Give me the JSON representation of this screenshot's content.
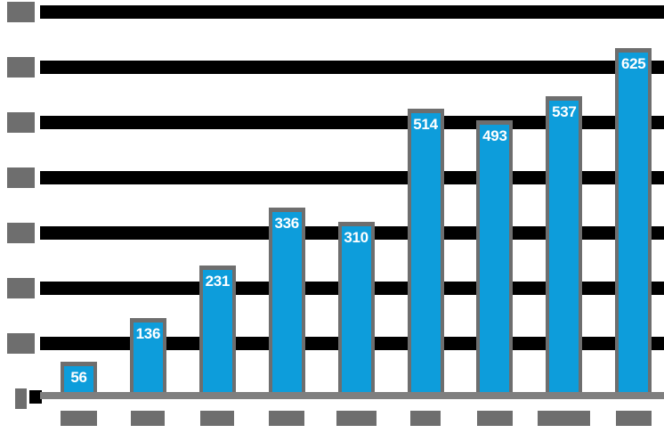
{
  "chart_data": {
    "type": "bar",
    "title": "",
    "values": [
      56,
      136,
      231,
      336,
      310,
      514,
      493,
      537,
      625
    ],
    "value_labels": [
      "56",
      "136",
      "231",
      "336",
      "310",
      "514",
      "493",
      "537",
      "625"
    ],
    "x_tick_labels_redacted": true,
    "x_tick_box_widths": [
      41,
      38,
      38,
      40,
      45,
      34,
      40,
      59,
      40
    ],
    "y_axis": {
      "min": 0,
      "max": 700,
      "step": 100,
      "tick_labels_redacted": true,
      "tick_box_width_multi_digit": 31,
      "tick_box_width_zero": 13
    },
    "grid": "thick-black-horizontal-bands",
    "legend": null,
    "colors": {
      "bar": "#0d9ddb",
      "bar_outline": "#6e6e6e",
      "gridline_band": "#000000",
      "axis_line": "#7f7f7f",
      "tick_box": "#6e6e6e",
      "value_label": "#ffffff",
      "background": "#ffffff"
    }
  }
}
